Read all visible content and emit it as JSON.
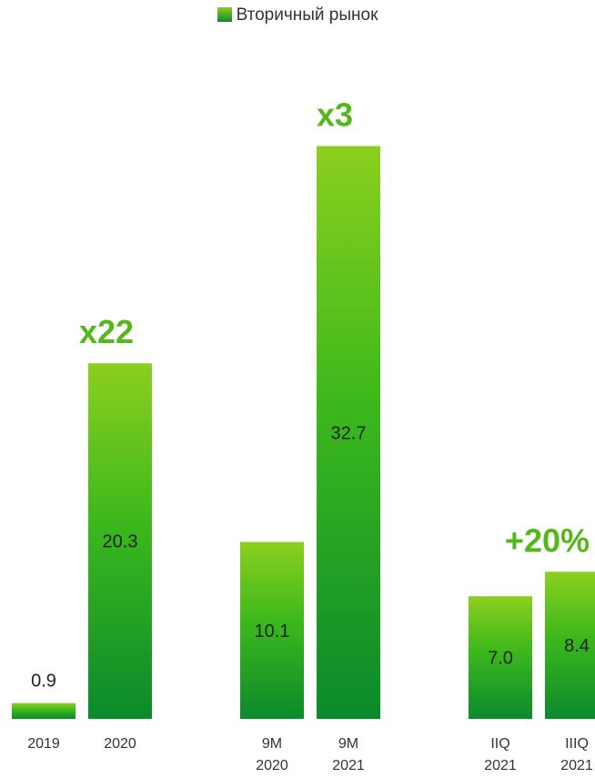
{
  "colors": {
    "accent": "#55b81a",
    "bar_top": "#8ccf1e",
    "bar_bottom": "#0b8a2c"
  },
  "chart_data": {
    "type": "bar",
    "legend": [
      "Вторичный рынок"
    ],
    "groups": [
      {
        "multiplier": "x22",
        "bars": [
          {
            "category": [
              "2019"
            ],
            "value": 0.9,
            "label": "0.9"
          },
          {
            "category": [
              "2020"
            ],
            "value": 20.3,
            "label": "20.3"
          }
        ]
      },
      {
        "multiplier": "x3",
        "bars": [
          {
            "category": [
              "9M",
              "2020"
            ],
            "value": 10.1,
            "label": "10.1"
          },
          {
            "category": [
              "9M",
              "2021"
            ],
            "value": 32.7,
            "label": "32.7"
          }
        ]
      },
      {
        "multiplier": "+20%",
        "bars": [
          {
            "category": [
              "IIQ",
              "2021"
            ],
            "value": 7.0,
            "label": "7.0"
          },
          {
            "category": [
              "IIIQ",
              "2021"
            ],
            "value": 8.4,
            "label": "8.4"
          }
        ]
      }
    ]
  }
}
